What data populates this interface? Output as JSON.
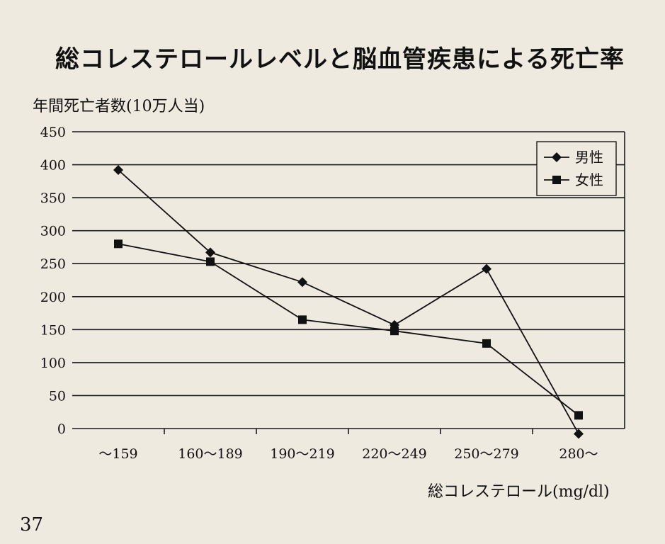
{
  "page": {
    "title": "総コレステロールレベルと脳血管疾患による死亡率",
    "number": "37"
  },
  "chart_data": {
    "type": "line",
    "title": "総コレステロールレベルと脳血管疾患による死亡率",
    "xlabel": "総コレステロール(mg/dl)",
    "ylabel": "年間死亡者数(10万人当)",
    "categories": [
      "〜159",
      "160〜189",
      "190〜219",
      "220〜249",
      "250〜279",
      "280〜"
    ],
    "ylim": [
      0,
      450
    ],
    "yticks": [
      0,
      50,
      100,
      150,
      200,
      250,
      300,
      350,
      400,
      450
    ],
    "grid": true,
    "legend_position": "top-right",
    "series": [
      {
        "name": "男性",
        "marker": "diamond",
        "values": [
          392,
          267,
          222,
          157,
          242,
          -8
        ]
      },
      {
        "name": "女性",
        "marker": "square",
        "values": [
          280,
          253,
          165,
          148,
          129,
          20
        ]
      }
    ],
    "colors": {
      "line": "#111111",
      "grid": "#1a1a1a",
      "background": "#efeae0"
    }
  }
}
